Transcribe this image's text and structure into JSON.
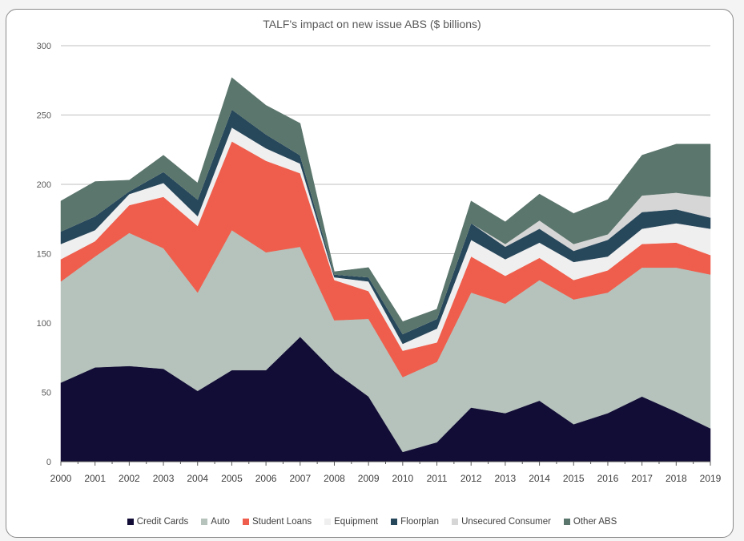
{
  "chart_data": {
    "type": "area",
    "stacked": true,
    "title": "TALF's impact on new issue ABS ($ billions)",
    "xlabel": "",
    "ylabel": "",
    "ylim": [
      0,
      300
    ],
    "yticks": [
      0,
      50,
      100,
      150,
      200,
      250,
      300
    ],
    "grid": true,
    "legend_position": "bottom",
    "categories": [
      "2000",
      "2001",
      "2002",
      "2003",
      "2004",
      "2005",
      "2006",
      "2007",
      "2008",
      "2009",
      "2010",
      "2011",
      "2012",
      "2013",
      "2014",
      "2015",
      "2016",
      "2017",
      "2018",
      "2019"
    ],
    "series": [
      {
        "name": "Credit Cards",
        "color": "#120d36",
        "values": [
          57,
          68,
          69,
          67,
          51,
          66,
          66,
          90,
          65,
          47,
          7,
          14,
          39,
          35,
          44,
          27,
          35,
          47,
          36,
          24
        ]
      },
      {
        "name": "Auto",
        "color": "#b6c2bc",
        "values": [
          73,
          80,
          96,
          87,
          71,
          101,
          85,
          65,
          37,
          56,
          54,
          58,
          83,
          79,
          87,
          90,
          87,
          93,
          104,
          111
        ]
      },
      {
        "name": "Student Loans",
        "color": "#ef5e4c",
        "values": [
          16,
          11,
          20,
          37,
          48,
          64,
          66,
          53,
          29,
          20,
          19,
          14,
          26,
          20,
          16,
          14,
          16,
          17,
          18,
          14
        ]
      },
      {
        "name": "Equipment",
        "color": "#efefef",
        "values": [
          11,
          8,
          8,
          10,
          7,
          10,
          9,
          7,
          2,
          7,
          5,
          10,
          12,
          12,
          11,
          13,
          10,
          11,
          14,
          19
        ]
      },
      {
        "name": "Floorplan",
        "color": "#27475b",
        "values": [
          9,
          10,
          2,
          8,
          12,
          13,
          10,
          6,
          2,
          3,
          7,
          7,
          12,
          9,
          10,
          8,
          12,
          12,
          10,
          8
        ]
      },
      {
        "name": "Unsecured Consumer",
        "color": "#d6d6d6",
        "values": [
          0,
          0,
          0,
          0,
          0,
          0,
          0,
          0,
          0,
          0,
          0,
          0,
          0,
          2,
          6,
          5,
          4,
          12,
          12,
          15
        ]
      },
      {
        "name": "Other ABS",
        "color": "#5b766c",
        "values": [
          22,
          25,
          8,
          12,
          12,
          23,
          21,
          23,
          2,
          7,
          9,
          7,
          16,
          16,
          19,
          22,
          25,
          29,
          35,
          38
        ]
      }
    ]
  }
}
